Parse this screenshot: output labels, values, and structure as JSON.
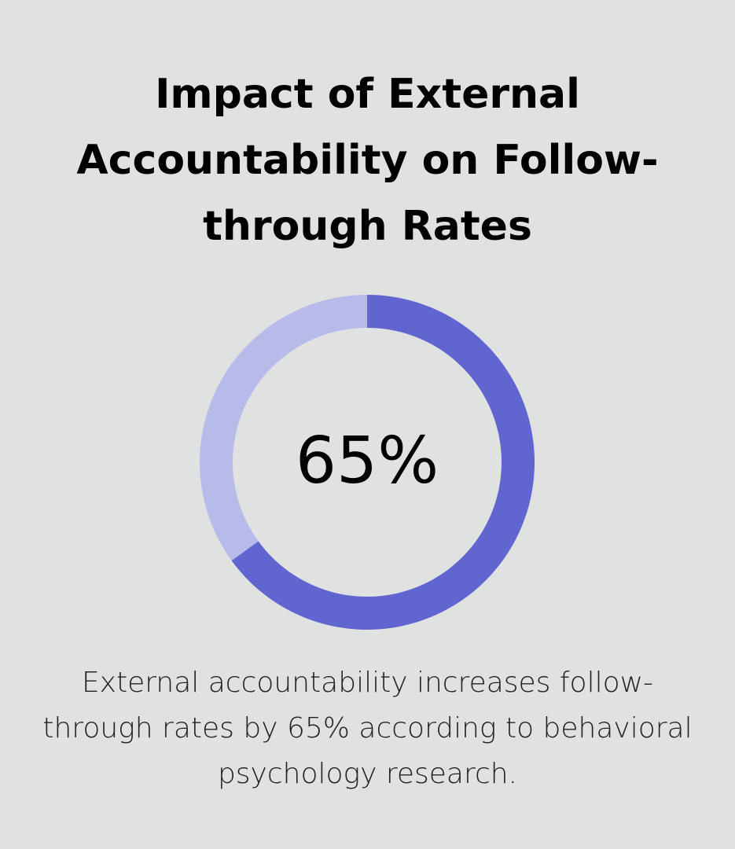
{
  "chart_data": {
    "type": "pie",
    "variant": "donut",
    "title_lines": [
      "Impact of External",
      "Accountability on Follow-",
      "through Rates"
    ],
    "values": [
      65,
      35
    ],
    "center_label": "65%",
    "colors": [
      "#6065cf",
      "#b8bbea"
    ],
    "description_lines": [
      "External accountability increases follow-",
      "through rates by 65% according to behavioral",
      "psychology research."
    ]
  },
  "colors": {
    "background": "#e0e2e1"
  }
}
